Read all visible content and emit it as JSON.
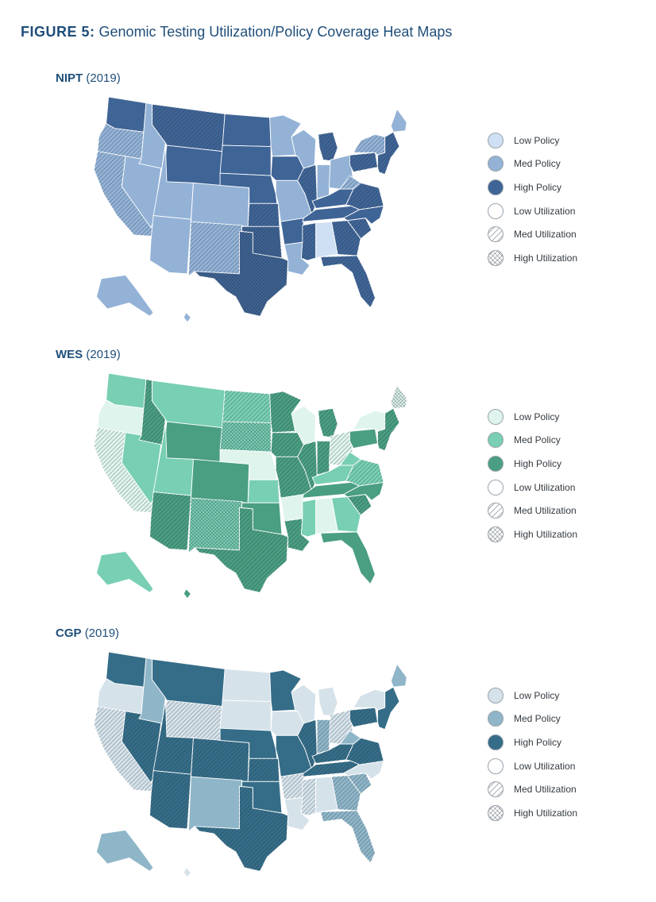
{
  "figure": {
    "label": "FIGURE 5:",
    "title": "Genomic Testing Utilization/Policy Coverage Heat Maps"
  },
  "legend_labels": [
    "Low Policy",
    "Med Policy",
    "High Policy",
    "Low Utilization",
    "Med Utilization",
    "High Utilization"
  ],
  "maps": [
    {
      "name": "NIPT",
      "year": "(2019)",
      "colors": {
        "low": "#cfe0f4",
        "med": "#93b2d6",
        "high": "#3f6496"
      },
      "states": {
        "WA": [
          "high",
          "low"
        ],
        "OR": [
          "med",
          "med"
        ],
        "CA": [
          "med",
          "med"
        ],
        "ID": [
          "med",
          "low"
        ],
        "NV": [
          "med",
          "low"
        ],
        "MT": [
          "high",
          "med"
        ],
        "WY": [
          "high",
          "low"
        ],
        "UT": [
          "med",
          "low"
        ],
        "AZ": [
          "med",
          "low"
        ],
        "CO": [
          "med",
          "low"
        ],
        "NM": [
          "med",
          "med"
        ],
        "ND": [
          "high",
          "low"
        ],
        "SD": [
          "high",
          "low"
        ],
        "NE": [
          "high",
          "low"
        ],
        "KS": [
          "high",
          "med"
        ],
        "OK": [
          "high",
          "high"
        ],
        "TX": [
          "high",
          "high"
        ],
        "MN": [
          "med",
          "low"
        ],
        "IA": [
          "high",
          "low"
        ],
        "MO": [
          "med",
          "low"
        ],
        "AR": [
          "high",
          "low"
        ],
        "LA": [
          "med",
          "low"
        ],
        "WI": [
          "med",
          "low"
        ],
        "IL": [
          "high",
          "med"
        ],
        "MI": [
          "high",
          "med"
        ],
        "IN": [
          "med",
          "low"
        ],
        "OH": [
          "med",
          "low"
        ],
        "KY": [
          "high",
          "low"
        ],
        "TN": [
          "high",
          "low"
        ],
        "MS": [
          "high",
          "med"
        ],
        "AL": [
          "low",
          "low"
        ],
        "GA": [
          "high",
          "med"
        ],
        "FL": [
          "high",
          "med"
        ],
        "SC": [
          "high",
          "med"
        ],
        "NC": [
          "high",
          "low"
        ],
        "VA": [
          "high",
          "med"
        ],
        "WV": [
          "med",
          "med"
        ],
        "PA": [
          "high",
          "med"
        ],
        "NY": [
          "med",
          "med"
        ],
        "NE_REG": [
          "high",
          "med"
        ],
        "ME": [
          "med",
          "low"
        ],
        "AK": [
          "med",
          "low"
        ],
        "HI": [
          "med",
          "low"
        ]
      }
    },
    {
      "name": "WES",
      "year": "(2019)",
      "colors": {
        "low": "#dff4ec",
        "med": "#78cfb3",
        "high": "#4a9e82"
      },
      "states": {
        "WA": [
          "med",
          "low"
        ],
        "OR": [
          "low",
          "low"
        ],
        "CA": [
          "low",
          "med"
        ],
        "ID": [
          "high",
          "med"
        ],
        "NV": [
          "med",
          "low"
        ],
        "MT": [
          "med",
          "low"
        ],
        "WY": [
          "high",
          "low"
        ],
        "UT": [
          "med",
          "low"
        ],
        "AZ": [
          "high",
          "med"
        ],
        "CO": [
          "high",
          "low"
        ],
        "NM": [
          "med",
          "high"
        ],
        "ND": [
          "med",
          "med"
        ],
        "SD": [
          "med",
          "high"
        ],
        "NE": [
          "low",
          "low"
        ],
        "KS": [
          "med",
          "low"
        ],
        "OK": [
          "high",
          "low"
        ],
        "TX": [
          "high",
          "med"
        ],
        "MN": [
          "high",
          "med"
        ],
        "IA": [
          "high",
          "med"
        ],
        "MO": [
          "high",
          "med"
        ],
        "AR": [
          "low",
          "low"
        ],
        "LA": [
          "high",
          "med"
        ],
        "WI": [
          "low",
          "low"
        ],
        "IL": [
          "high",
          "med"
        ],
        "MI": [
          "high",
          "med"
        ],
        "IN": [
          "high",
          "med"
        ],
        "OH": [
          "low",
          "med"
        ],
        "KY": [
          "med",
          "low"
        ],
        "TN": [
          "high",
          "low"
        ],
        "MS": [
          "med",
          "low"
        ],
        "AL": [
          "low",
          "low"
        ],
        "GA": [
          "med",
          "low"
        ],
        "FL": [
          "high",
          "low"
        ],
        "SC": [
          "high",
          "med"
        ],
        "NC": [
          "high",
          "low"
        ],
        "VA": [
          "med",
          "med"
        ],
        "WV": [
          "med",
          "low"
        ],
        "PA": [
          "high",
          "low"
        ],
        "NY": [
          "low",
          "low"
        ],
        "NE_REG": [
          "high",
          "med"
        ],
        "ME": [
          "low",
          "high"
        ],
        "AK": [
          "med",
          "low"
        ],
        "HI": [
          "high",
          "low"
        ]
      }
    },
    {
      "name": "CGP",
      "year": "(2019)",
      "colors": {
        "low": "#d5e2ea",
        "med": "#8fb6c8",
        "high": "#356d88"
      },
      "states": {
        "WA": [
          "high",
          "low"
        ],
        "OR": [
          "low",
          "low"
        ],
        "CA": [
          "low",
          "med"
        ],
        "ID": [
          "med",
          "low"
        ],
        "NV": [
          "high",
          "med"
        ],
        "MT": [
          "high",
          "low"
        ],
        "WY": [
          "low",
          "med"
        ],
        "UT": [
          "high",
          "med"
        ],
        "AZ": [
          "high",
          "med"
        ],
        "CO": [
          "high",
          "med"
        ],
        "NM": [
          "med",
          "low"
        ],
        "ND": [
          "low",
          "low"
        ],
        "SD": [
          "low",
          "low"
        ],
        "NE": [
          "high",
          "low"
        ],
        "KS": [
          "high",
          "med"
        ],
        "OK": [
          "high",
          "low"
        ],
        "TX": [
          "high",
          "med"
        ],
        "MN": [
          "high",
          "low"
        ],
        "IA": [
          "low",
          "low"
        ],
        "MO": [
          "high",
          "low"
        ],
        "AR": [
          "low",
          "med"
        ],
        "LA": [
          "low",
          "low"
        ],
        "WI": [
          "low",
          "low"
        ],
        "IL": [
          "high",
          "med"
        ],
        "MI": [
          "low",
          "low"
        ],
        "IN": [
          "med",
          "med"
        ],
        "OH": [
          "low",
          "med"
        ],
        "KY": [
          "high",
          "med"
        ],
        "TN": [
          "high",
          "med"
        ],
        "MS": [
          "low",
          "med"
        ],
        "AL": [
          "low",
          "low"
        ],
        "GA": [
          "med",
          "med"
        ],
        "FL": [
          "med",
          "med"
        ],
        "SC": [
          "med",
          "med"
        ],
        "NC": [
          "low",
          "low"
        ],
        "VA": [
          "high",
          "med"
        ],
        "WV": [
          "med",
          "low"
        ],
        "PA": [
          "high",
          "med"
        ],
        "NY": [
          "low",
          "low"
        ],
        "NE_REG": [
          "high",
          "low"
        ],
        "ME": [
          "med",
          "low"
        ],
        "AK": [
          "med",
          "low"
        ],
        "HI": [
          "low",
          "low"
        ]
      }
    }
  ]
}
